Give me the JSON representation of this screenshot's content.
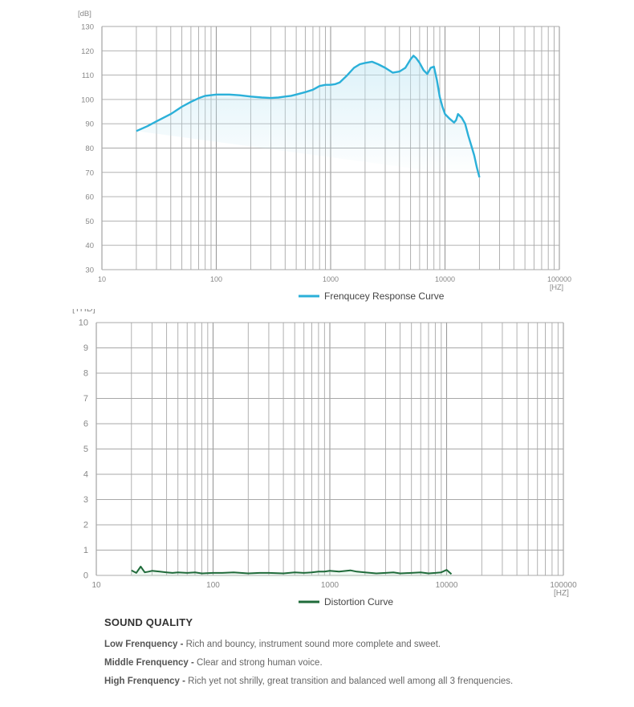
{
  "chart_data": [
    {
      "type": "line",
      "x_scale": "log",
      "xlim": [
        10,
        100000
      ],
      "ylim": [
        30,
        130
      ],
      "y_unit_label": "[dB]",
      "x_unit_label": "[HZ]",
      "y_ticks": [
        "30",
        "40",
        "50",
        "60",
        "70",
        "80",
        "90",
        "100",
        "110",
        "120",
        "130"
      ],
      "x_ticks": [
        "10",
        "100",
        "1000",
        "10000",
        "100000"
      ],
      "grid": true,
      "legend_position": "bottom-center",
      "series": [
        {
          "name": "Frenqucey Response Curve",
          "color": "#2bb0d9",
          "fill": "#bfe6f3",
          "x": [
            20,
            25,
            30,
            40,
            50,
            60,
            70,
            80,
            100,
            130,
            160,
            200,
            250,
            300,
            350,
            400,
            450,
            500,
            600,
            700,
            800,
            900,
            1000,
            1100,
            1200,
            1400,
            1600,
            1800,
            2000,
            2300,
            2600,
            3000,
            3500,
            4000,
            4500,
            5000,
            5300,
            5600,
            6000,
            6500,
            7000,
            7500,
            8000,
            8500,
            9000,
            9500,
            10000,
            11000,
            12000,
            12500,
            13000,
            14000,
            15000,
            16000,
            17000,
            18000,
            19000,
            20000
          ],
          "y": [
            87,
            89,
            91,
            94,
            97,
            99,
            100.5,
            101.5,
            102,
            102,
            101.7,
            101.2,
            100.8,
            100.6,
            100.8,
            101.2,
            101.5,
            102,
            103,
            104,
            105.5,
            106,
            106,
            106.3,
            107,
            110,
            113,
            114.5,
            115,
            115.5,
            114.5,
            113,
            111,
            111.5,
            113,
            116.5,
            118,
            117,
            115,
            112,
            110.5,
            113,
            113.5,
            108,
            101,
            97,
            94,
            92,
            90.5,
            91.5,
            94,
            92.5,
            90,
            85,
            81,
            77,
            72,
            68
          ]
        }
      ]
    },
    {
      "type": "line",
      "x_scale": "log",
      "xlim": [
        10,
        100000
      ],
      "ylim": [
        0,
        10
      ],
      "y_unit_label": "[THD]",
      "x_unit_label": "[HZ]",
      "y_ticks": [
        "0",
        "1",
        "2",
        "3",
        "4",
        "5",
        "6",
        "7",
        "8",
        "9",
        "10"
      ],
      "x_ticks": [
        "10",
        "100",
        "1000",
        "10000",
        "100000"
      ],
      "grid": true,
      "legend_position": "bottom-center",
      "series": [
        {
          "name": "Distortion Curve",
          "color": "#1f6b3a",
          "fill": "#c9ecd6",
          "x": [
            20,
            22,
            24,
            26,
            28,
            30,
            35,
            40,
            45,
            50,
            60,
            70,
            80,
            100,
            120,
            150,
            200,
            250,
            300,
            400,
            500,
            600,
            700,
            800,
            900,
            1000,
            1200,
            1500,
            1700,
            2000,
            2500,
            3000,
            3500,
            4000,
            5000,
            6000,
            7000,
            8000,
            9000,
            10000,
            11000
          ],
          "y": [
            0.2,
            0.1,
            0.35,
            0.12,
            0.15,
            0.18,
            0.15,
            0.12,
            0.1,
            0.12,
            0.1,
            0.12,
            0.08,
            0.1,
            0.1,
            0.12,
            0.08,
            0.1,
            0.1,
            0.08,
            0.12,
            0.1,
            0.12,
            0.15,
            0.15,
            0.18,
            0.15,
            0.2,
            0.15,
            0.12,
            0.08,
            0.1,
            0.12,
            0.08,
            0.1,
            0.12,
            0.08,
            0.1,
            0.12,
            0.22,
            0.05
          ]
        }
      ]
    }
  ],
  "sound_quality": {
    "title": "SOUND QUALITY",
    "low": {
      "label": "Low Frenquency -",
      "text": "Rich and bouncy, instrument sound more complete and sweet."
    },
    "middle": {
      "label": "Middle Frenquency -",
      "text": "Clear and strong human voice."
    },
    "high": {
      "label": "High Frenquency -",
      "text": "Rich yet not shrilly, great transition and balanced well among all 3 frenquencies."
    }
  }
}
